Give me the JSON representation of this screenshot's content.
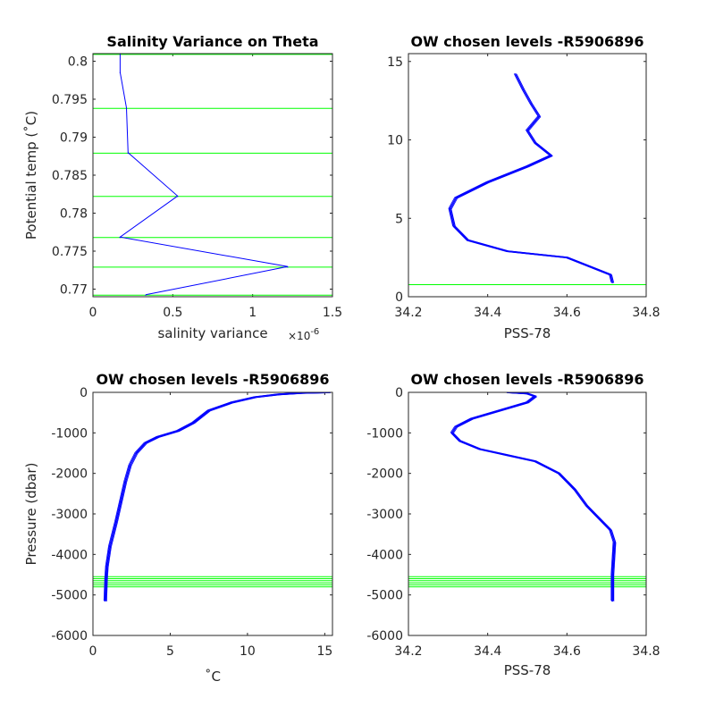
{
  "chart_data": [
    {
      "type": "line",
      "title": "Salinity Variance on Theta",
      "xlabel": "salinity variance",
      "x_exponent_label": "×10",
      "x_exponent_power": "-6",
      "ylabel": "Potential temp (˚C)",
      "xlim": [
        0,
        1.5
      ],
      "ylim": [
        0.769,
        0.801
      ],
      "x_ticks": [
        "0",
        "0.5",
        "1",
        "1.5"
      ],
      "x_tick_values": [
        0,
        0.5,
        1,
        1.5
      ],
      "y_ticks": [
        "0.77",
        "0.775",
        "0.78",
        "0.785",
        "0.79",
        "0.795",
        "0.8"
      ],
      "y_tick_values": [
        0.77,
        0.775,
        0.78,
        0.785,
        0.79,
        0.795,
        0.8
      ],
      "series": [
        {
          "color": "#0000ff",
          "x": [
            0.33,
            1.22,
            0.17,
            0.53,
            0.22,
            0.21,
            0.17,
            0.17
          ],
          "y": [
            0.7692,
            0.7729,
            0.7768,
            0.7822,
            0.7879,
            0.7938,
            0.7985,
            0.801
          ]
        }
      ],
      "hlines": {
        "color": "#00ff00",
        "values": [
          0.8009,
          0.7938,
          0.7879,
          0.7822,
          0.7768,
          0.7729,
          0.7692
        ]
      },
      "grid": false
    },
    {
      "type": "line",
      "title": "OW chosen levels -R5906896",
      "xlabel": "PSS-78",
      "ylabel": "",
      "xlim": [
        34.2,
        34.8
      ],
      "ylim": [
        0,
        15.5
      ],
      "x_ticks": [
        "34.2",
        "34.4",
        "34.6",
        "34.8"
      ],
      "x_tick_values": [
        34.2,
        34.4,
        34.6,
        34.8
      ],
      "y_ticks": [
        "0",
        "5",
        "10",
        "15"
      ],
      "y_tick_values": [
        0,
        5,
        10,
        15
      ],
      "series": [
        {
          "color": "#0000ff",
          "x": [
            34.715,
            34.71,
            34.6,
            34.45,
            34.35,
            34.315,
            34.305,
            34.32,
            34.4,
            34.5,
            34.56,
            34.52,
            34.5,
            34.53,
            34.51,
            34.49,
            34.47
          ],
          "y": [
            0.9,
            1.4,
            2.5,
            2.9,
            3.6,
            4.5,
            5.6,
            6.3,
            7.3,
            8.3,
            9.0,
            9.8,
            10.6,
            11.5,
            12.3,
            13.2,
            14.2
          ]
        }
      ],
      "hlines": {
        "color": "#00ff00",
        "values": [
          0.77
        ]
      },
      "grid": false
    },
    {
      "type": "line",
      "title": "OW chosen levels -R5906896",
      "xlabel": "˚C",
      "ylabel": "Pressure (dbar)",
      "xlim": [
        0,
        15.5
      ],
      "ylim": [
        -6000,
        0
      ],
      "x_ticks": [
        "0",
        "5",
        "10",
        "15"
      ],
      "x_tick_values": [
        0,
        5,
        10,
        15
      ],
      "y_ticks": [
        "0",
        "-1000",
        "-2000",
        "-3000",
        "-4000",
        "-5000",
        "-6000"
      ],
      "y_tick_values": [
        0,
        -1000,
        -2000,
        -3000,
        -4000,
        -5000,
        -6000
      ],
      "series": [
        {
          "color": "#0000ff",
          "x": [
            0.8,
            0.85,
            0.9,
            1.1,
            1.5,
            1.8,
            2.1,
            2.4,
            2.8,
            3.4,
            4.2,
            5.5,
            6.5,
            7.5,
            9.0,
            10.5,
            12.0,
            13.5,
            15.3
          ],
          "y": [
            -5150,
            -4600,
            -4300,
            -3800,
            -3200,
            -2700,
            -2200,
            -1800,
            -1500,
            -1250,
            -1100,
            -950,
            -750,
            -450,
            -250,
            -120,
            -50,
            -15,
            0
          ]
        }
      ],
      "hlines": {
        "color": "#00ff00",
        "values": [
          -4550,
          -4600,
          -4650,
          -4700,
          -4750,
          -4800
        ]
      },
      "grid": false
    },
    {
      "type": "line",
      "title": "OW chosen levels -R5906896",
      "xlabel": "PSS-78",
      "ylabel": "",
      "xlim": [
        34.2,
        34.8
      ],
      "ylim": [
        -6000,
        0
      ],
      "x_ticks": [
        "34.2",
        "34.4",
        "34.6",
        "34.8"
      ],
      "x_tick_values": [
        34.2,
        34.4,
        34.6,
        34.8
      ],
      "y_ticks": [
        "0",
        "-1000",
        "-2000",
        "-3000",
        "-4000",
        "-5000",
        "-6000"
      ],
      "y_tick_values": [
        0,
        -1000,
        -2000,
        -3000,
        -4000,
        -5000,
        -6000
      ],
      "series": [
        {
          "color": "#0000ff",
          "x": [
            34.715,
            34.715,
            34.72,
            34.71,
            34.68,
            34.65,
            34.62,
            34.58,
            34.52,
            34.45,
            34.38,
            34.33,
            34.31,
            34.32,
            34.36,
            34.43,
            34.5,
            34.52,
            34.5,
            34.45
          ],
          "y": [
            -5150,
            -4500,
            -3700,
            -3400,
            -3100,
            -2800,
            -2400,
            -2000,
            -1700,
            -1550,
            -1400,
            -1200,
            -1000,
            -850,
            -650,
            -450,
            -250,
            -100,
            -30,
            0
          ]
        }
      ],
      "hlines": {
        "color": "#00ff00",
        "values": [
          -4550,
          -4600,
          -4650,
          -4700,
          -4750,
          -4800
        ]
      },
      "grid": false
    }
  ]
}
